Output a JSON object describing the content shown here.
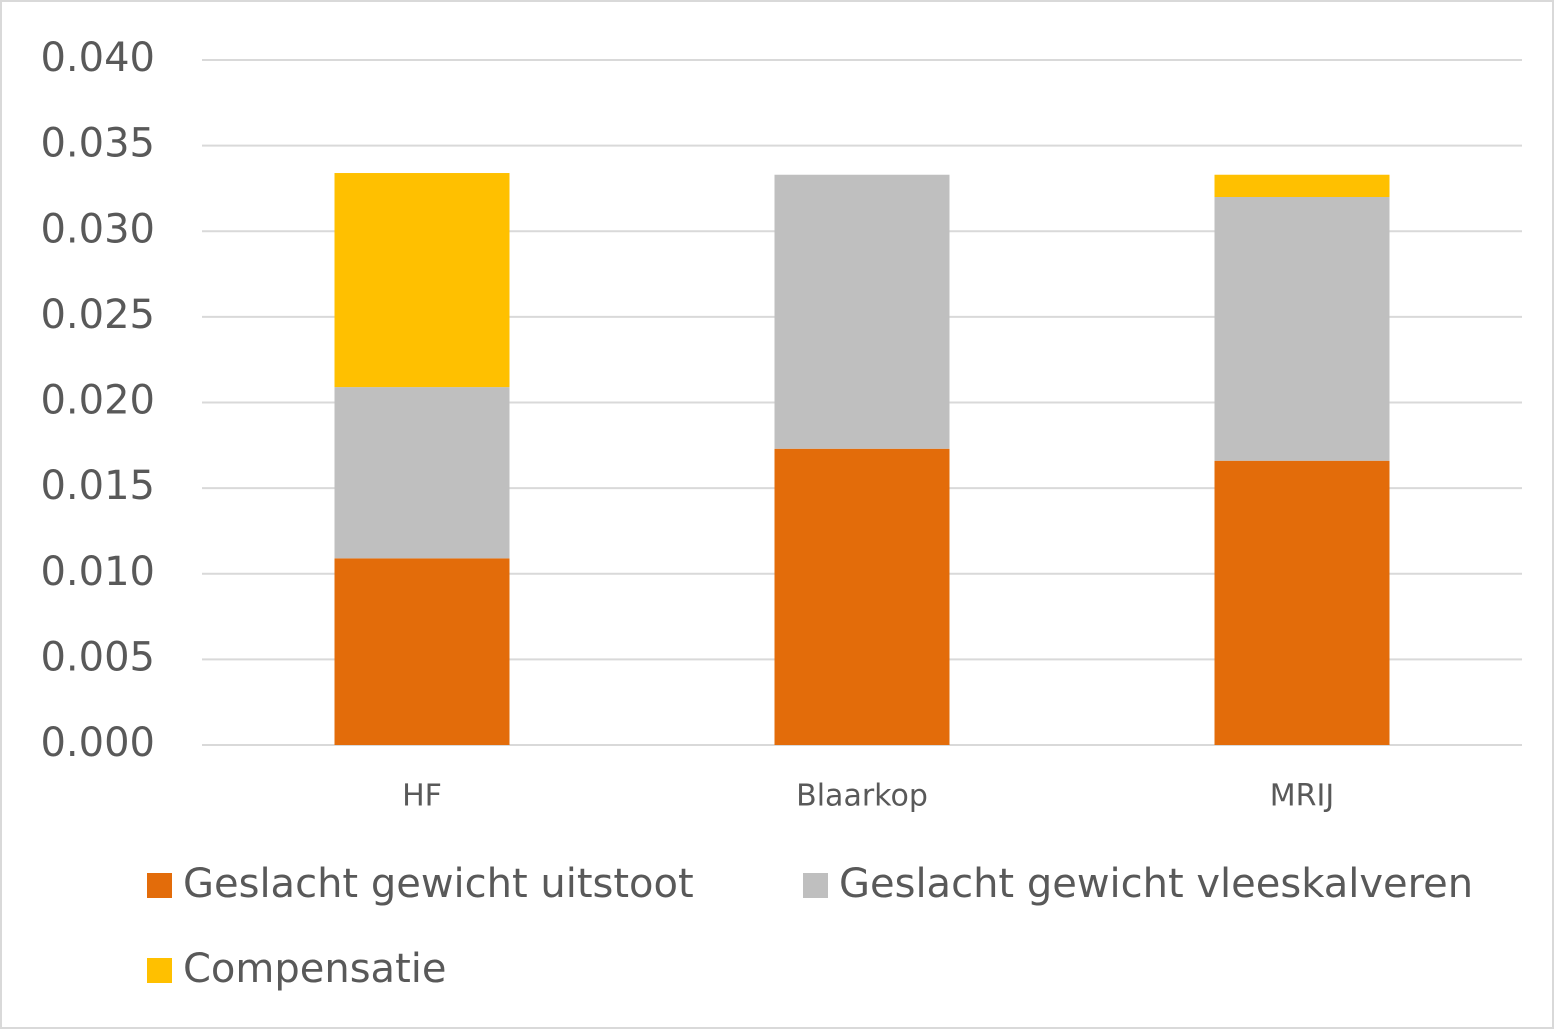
{
  "chart_data": {
    "type": "stacked_bar",
    "categories": [
      "HF",
      "Blaarkop",
      "MRIJ"
    ],
    "series": [
      {
        "name": "Geslacht gewicht uitstoot",
        "color": "#e36c0a",
        "values": [
          0.0109,
          0.0173,
          0.0166
        ]
      },
      {
        "name": "Geslacht gewicht vleeskalveren",
        "color": "#bfbfbf",
        "values": [
          0.01,
          0.016,
          0.0154
        ]
      },
      {
        "name": "Compensatie",
        "color": "#ffc000",
        "values": [
          0.0125,
          0,
          0.0013
        ]
      }
    ],
    "ylim": [
      0,
      0.04
    ],
    "yticks": [
      {
        "value": 0,
        "label": "0.000"
      },
      {
        "value": 0.005,
        "label": "0.005"
      },
      {
        "value": 0.01,
        "label": "0.010"
      },
      {
        "value": 0.015,
        "label": "0.015"
      },
      {
        "value": 0.02,
        "label": "0.020"
      },
      {
        "value": 0.025,
        "label": "0.025"
      },
      {
        "value": 0.03,
        "label": "0.030"
      },
      {
        "value": 0.035,
        "label": "0.035"
      },
      {
        "value": 0.04,
        "label": "0.040"
      }
    ],
    "grid": true,
    "legend": "bottom"
  }
}
